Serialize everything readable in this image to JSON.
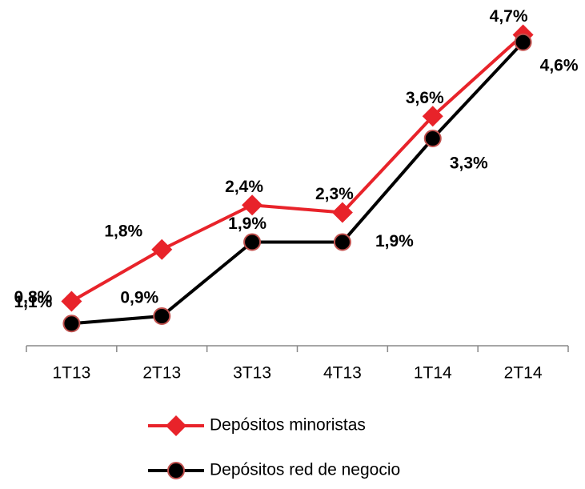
{
  "chart_data": {
    "type": "line",
    "categories": [
      "1T13",
      "2T13",
      "3T13",
      "4T13",
      "1T14",
      "2T14"
    ],
    "series": [
      {
        "name": "Depósitos minoristas",
        "color": "#e8232a",
        "marker": "diamond",
        "values": [
          1.1,
          1.8,
          2.4,
          2.3,
          3.6,
          4.7
        ],
        "value_labels": [
          "1,1%",
          "1,8%",
          "2,4%",
          "2,3%",
          "3,6%",
          "4,7%"
        ]
      },
      {
        "name": "Depósitos red de negocio",
        "color": "#000000",
        "marker": "circle",
        "values": [
          0.8,
          0.9,
          1.9,
          1.9,
          3.3,
          4.6
        ],
        "value_labels": [
          "0,8%",
          "0,9%",
          "1,9%",
          "1,9%",
          "3,3%",
          "4,6%"
        ]
      }
    ],
    "ylim": [
      0.5,
      4.9
    ],
    "legend": "bottom"
  }
}
